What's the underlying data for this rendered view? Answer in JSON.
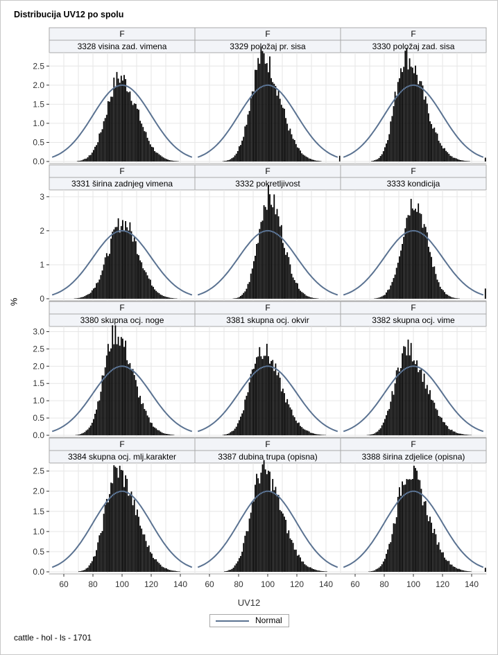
{
  "title": "Distribucija UV12 po spolu",
  "footnote": "cattle - hol - ls - 1701",
  "xlabel": "UV12",
  "ylabel": "%",
  "legend": {
    "label": "Normal",
    "color": "#5a7291"
  },
  "colors": {
    "bar": "#000000",
    "curve": "#5a7291",
    "header_bg": "#f2f4f8",
    "grid": "#e6e6e6",
    "frame": "#a8a8a8"
  },
  "chart_data": {
    "type": "bar",
    "layout": "3x4 panel histogram with normal curve overlay",
    "x_axis": {
      "label": "UV12",
      "range": [
        50,
        150
      ],
      "ticks": [
        60,
        80,
        100,
        120,
        140
      ]
    },
    "normal_curve": {
      "name": "Normal",
      "mean": 100,
      "sd": 20
    },
    "grid": true,
    "legend_position": "bottom-center",
    "rows": [
      {
        "y_ticks": [
          0,
          0.5,
          1.0,
          1.5,
          2.0,
          2.5
        ],
        "y_tick_labels": [
          "0.0",
          "0.5",
          "1.0",
          "1.5",
          "2.0",
          "2.5"
        ],
        "ymax": 2.85,
        "normal_peak": 2.0
      },
      {
        "y_ticks": [
          0,
          1,
          2,
          3
        ],
        "y_tick_labels": [
          "0",
          "1",
          "2",
          "3"
        ],
        "ymax": 3.2,
        "normal_peak": 2.0
      },
      {
        "y_ticks": [
          0,
          0.5,
          1.0,
          1.5,
          2.0,
          2.5,
          3.0
        ],
        "y_tick_labels": [
          "0.0",
          "0.5",
          "1.0",
          "1.5",
          "2.0",
          "2.5",
          "3.0"
        ],
        "ymax": 3.15,
        "normal_peak": 2.0
      },
      {
        "y_ticks": [
          0,
          0.5,
          1.0,
          1.5,
          2.0,
          2.5
        ],
        "y_tick_labels": [
          "0.0",
          "0.5",
          "1.0",
          "1.5",
          "2.0",
          "2.5"
        ],
        "ymax": 2.7,
        "normal_peak": 2.0
      }
    ],
    "panels": [
      {
        "sex": "F",
        "trait": "3328 visina zad. vimena",
        "peak_x": 98,
        "peak_y": 2.2,
        "sd_left": 9,
        "sd_right": 12,
        "tail_right": 0
      },
      {
        "sex": "F",
        "trait": "3329 položaj pr. sisa",
        "peak_x": 96,
        "peak_y": 2.75,
        "sd_left": 8,
        "sd_right": 12,
        "tail_right": 0.15
      },
      {
        "sex": "F",
        "trait": "3330 položaj zad. sisa",
        "peak_x": 94,
        "peak_y": 2.75,
        "sd_left": 7,
        "sd_right": 13,
        "tail_right": 0.1
      },
      {
        "sex": "F",
        "trait": "3331 širina zadnjeg vimena",
        "peak_x": 100,
        "peak_y": 2.25,
        "sd_left": 10,
        "sd_right": 11,
        "tail_right": 0
      },
      {
        "sex": "F",
        "trait": "3332 pokretljivost",
        "peak_x": 100,
        "peak_y": 3.0,
        "sd_left": 7,
        "sd_right": 10,
        "tail_right": 0
      },
      {
        "sex": "F",
        "trait": "3333 kondicija",
        "peak_x": 100,
        "peak_y": 2.9,
        "sd_left": 8,
        "sd_right": 9,
        "tail_right": 0.3
      },
      {
        "sex": "F",
        "trait": "3380 skupna ocj. noge",
        "peak_x": 95,
        "peak_y": 2.95,
        "sd_left": 8,
        "sd_right": 12,
        "tail_right": 0
      },
      {
        "sex": "F",
        "trait": "3381 skupna ocj. okvir",
        "peak_x": 95,
        "peak_y": 2.5,
        "sd_left": 8,
        "sd_right": 13,
        "tail_right": 0
      },
      {
        "sex": "F",
        "trait": "3382 skupna ocj. vime",
        "peak_x": 95,
        "peak_y": 2.5,
        "sd_left": 8,
        "sd_right": 13,
        "tail_right": 0
      },
      {
        "sex": "F",
        "trait": "3384 skupna ocj. mlj.karakter",
        "peak_x": 96,
        "peak_y": 2.5,
        "sd_left": 8,
        "sd_right": 13,
        "tail_right": 0
      },
      {
        "sex": "F",
        "trait": "3387 dubina trupa (opisna)",
        "peak_x": 96,
        "peak_y": 2.5,
        "sd_left": 8,
        "sd_right": 13,
        "tail_right": 0
      },
      {
        "sex": "F",
        "trait": "3388 širina zdjelice (opisna)",
        "peak_x": 96,
        "peak_y": 2.5,
        "sd_left": 8,
        "sd_right": 13,
        "tail_right": 0.1
      }
    ]
  }
}
